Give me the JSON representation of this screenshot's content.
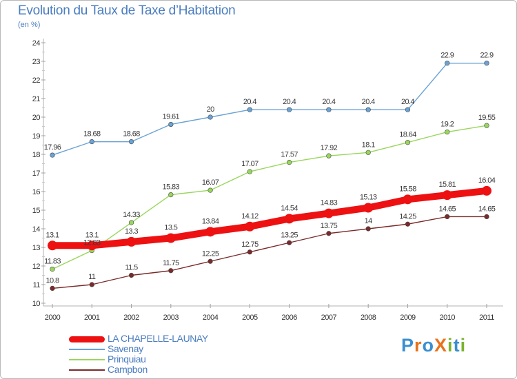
{
  "title": "Evolution du Taux de Taxe d’Habitation",
  "subtitle": "(en %)",
  "chart_data": {
    "type": "line",
    "title": "Evolution du Taux de Taxe d’Habitation",
    "ylabel": "(en %)",
    "xlabel": "",
    "ylim": [
      10,
      24
    ],
    "yticks": [
      "10",
      "11",
      "12",
      "13",
      "14",
      "15",
      "16",
      "17",
      "18",
      "19",
      "20",
      "21",
      "22",
      "23",
      "24"
    ],
    "categories": [
      "2000",
      "2001",
      "2002",
      "2003",
      "2004",
      "2005",
      "2006",
      "2007",
      "2008",
      "2009",
      "2010",
      "2011"
    ],
    "series": [
      {
        "name": "LA CHAPELLE-LAUNAY",
        "color": "#ee1111",
        "values": [
          13.1,
          13.1,
          13.3,
          13.5,
          13.84,
          14.12,
          14.54,
          14.83,
          15.13,
          15.58,
          15.81,
          16.04
        ],
        "labels": [
          "13.1",
          "13.1",
          "13.3",
          "13.5",
          "13.84",
          "14.12",
          "14.54",
          "14.83",
          "15.13",
          "15.58",
          "15.81",
          "16.04"
        ]
      },
      {
        "name": "Savenay",
        "color": "#6aa2d4",
        "values": [
          17.96,
          18.68,
          18.68,
          19.61,
          20,
          20.4,
          20.4,
          20.4,
          20.4,
          20.4,
          22.9,
          22.9
        ],
        "labels": [
          "17.96",
          "18.68",
          "18.68",
          "19.61",
          "20",
          "20.4",
          "20.4",
          "20.4",
          "20.4",
          "20.4",
          "22.9",
          "22.9"
        ]
      },
      {
        "name": "Prinquiau",
        "color": "#99d65c",
        "values": [
          11.83,
          12.83,
          14.33,
          15.83,
          16.07,
          17.07,
          17.57,
          17.92,
          18.1,
          18.64,
          19.2,
          19.55
        ],
        "labels": [
          "11.83",
          "12.83",
          "14.33",
          "15.83",
          "16.07",
          "17.07",
          "17.57",
          "17.92",
          "18.1",
          "18.64",
          "19.2",
          "19.55"
        ]
      },
      {
        "name": "Campbon",
        "color": "#7a2a2a",
        "values": [
          10.8,
          11,
          11.5,
          11.75,
          12.25,
          12.75,
          13.25,
          13.75,
          14,
          14.25,
          14.65,
          14.65
        ],
        "labels": [
          "10.8",
          "11",
          "11.5",
          "11.75",
          "12.25",
          "12.75",
          "13.25",
          "13.75",
          "14",
          "14.25",
          "14.65",
          "14.65"
        ]
      }
    ],
    "legend_position": "bottom-left",
    "grid": false
  },
  "legend": [
    {
      "label": "LA CHAPELLE-LAUNAY",
      "color": "#ee1111"
    },
    {
      "label": "Savenay",
      "color": "#6aa2d4"
    },
    {
      "label": "Prinquiau",
      "color": "#99d65c"
    },
    {
      "label": "Campbon",
      "color": "#7a2a2a"
    }
  ],
  "logo": {
    "text": "ProXiti",
    "letters": [
      "P",
      "r",
      "o",
      "X",
      "i",
      "t",
      "i"
    ],
    "colors": [
      "#3a8fd0",
      "#e8731a",
      "#3a8fd0",
      "#e8731a",
      "#7ab32e",
      "#3a8fd0",
      "#7ab32e"
    ]
  }
}
